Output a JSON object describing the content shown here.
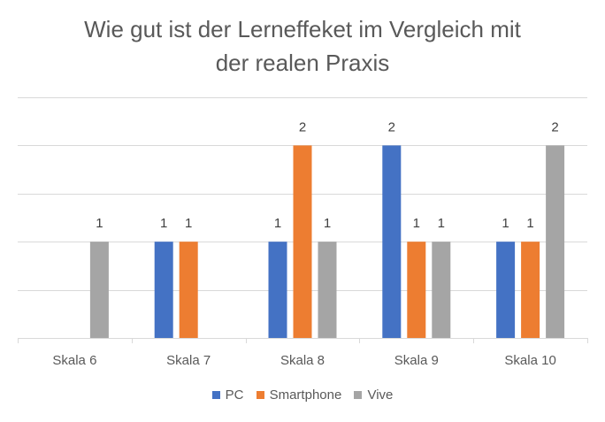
{
  "chart_data": {
    "type": "bar",
    "title": "Wie gut ist der Lerneffeket im Vergleich mit\nder realen Praxis",
    "xlabel": "",
    "ylabel": "",
    "categories": [
      "Skala 6",
      "Skala 7",
      "Skala 8",
      "Skala 9",
      "Skala 10"
    ],
    "series": [
      {
        "name": "PC",
        "color": "#4472C4",
        "values": [
          0,
          1,
          1,
          2,
          1
        ]
      },
      {
        "name": "Smartphone",
        "color": "#ED7D31",
        "values": [
          0,
          1,
          2,
          1,
          1
        ]
      },
      {
        "name": "Vive",
        "color": "#A5A5A5",
        "values": [
          1,
          0,
          1,
          1,
          2
        ]
      }
    ],
    "ylim": [
      0,
      2.5
    ],
    "grid": true,
    "legend": "bottom",
    "data_labels": true
  }
}
